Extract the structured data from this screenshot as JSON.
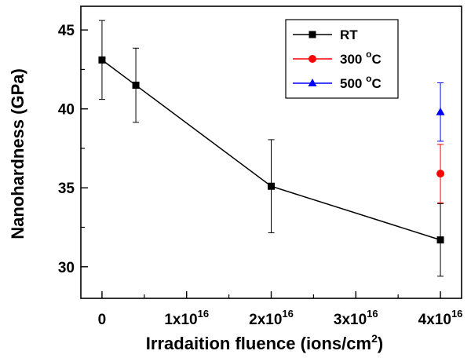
{
  "chart_data": {
    "type": "scatter",
    "xlabel_text": "Irradaition fluence (ions/cm",
    "xlabel_sup": "2",
    "xlabel_close": ")",
    "ylabel": "Nanohardness (GPa)",
    "xlim": [
      -2500000000000000.0,
      4.25e+16
    ],
    "ylim": [
      28,
      46.5
    ],
    "x_ticks": [
      {
        "value": 0,
        "base": "0",
        "sup": ""
      },
      {
        "value": 1e+16,
        "base": "1x10",
        "sup": "16"
      },
      {
        "value": 2e+16,
        "base": "2x10",
        "sup": "16"
      },
      {
        "value": 3e+16,
        "base": "3x10",
        "sup": "16"
      },
      {
        "value": 4e+16,
        "base": "4x10",
        "sup": "16"
      }
    ],
    "y_ticks": [
      30,
      35,
      40,
      45
    ],
    "legend_position": "top-right",
    "series": [
      {
        "name": "RT",
        "name_sup": "",
        "name_suffix": "",
        "color": "#000000",
        "marker": "square",
        "line": true,
        "x": [
          0,
          4000000000000000.0,
          2e+16,
          4e+16
        ],
        "y": [
          43.1,
          41.5,
          35.1,
          31.7
        ],
        "err": [
          2.5,
          2.35,
          2.95,
          2.3
        ]
      },
      {
        "name": "300 ",
        "name_sup": "o",
        "name_suffix": "C",
        "color": "#ff0000",
        "marker": "circle",
        "line": false,
        "x": [
          4e+16
        ],
        "y": [
          35.9
        ],
        "err": [
          1.85
        ]
      },
      {
        "name": "500 ",
        "name_sup": "o",
        "name_suffix": "C",
        "color": "#0000ff",
        "marker": "triangle",
        "line": false,
        "x": [
          4e+16
        ],
        "y": [
          39.8
        ],
        "err": [
          1.85
        ]
      }
    ]
  }
}
